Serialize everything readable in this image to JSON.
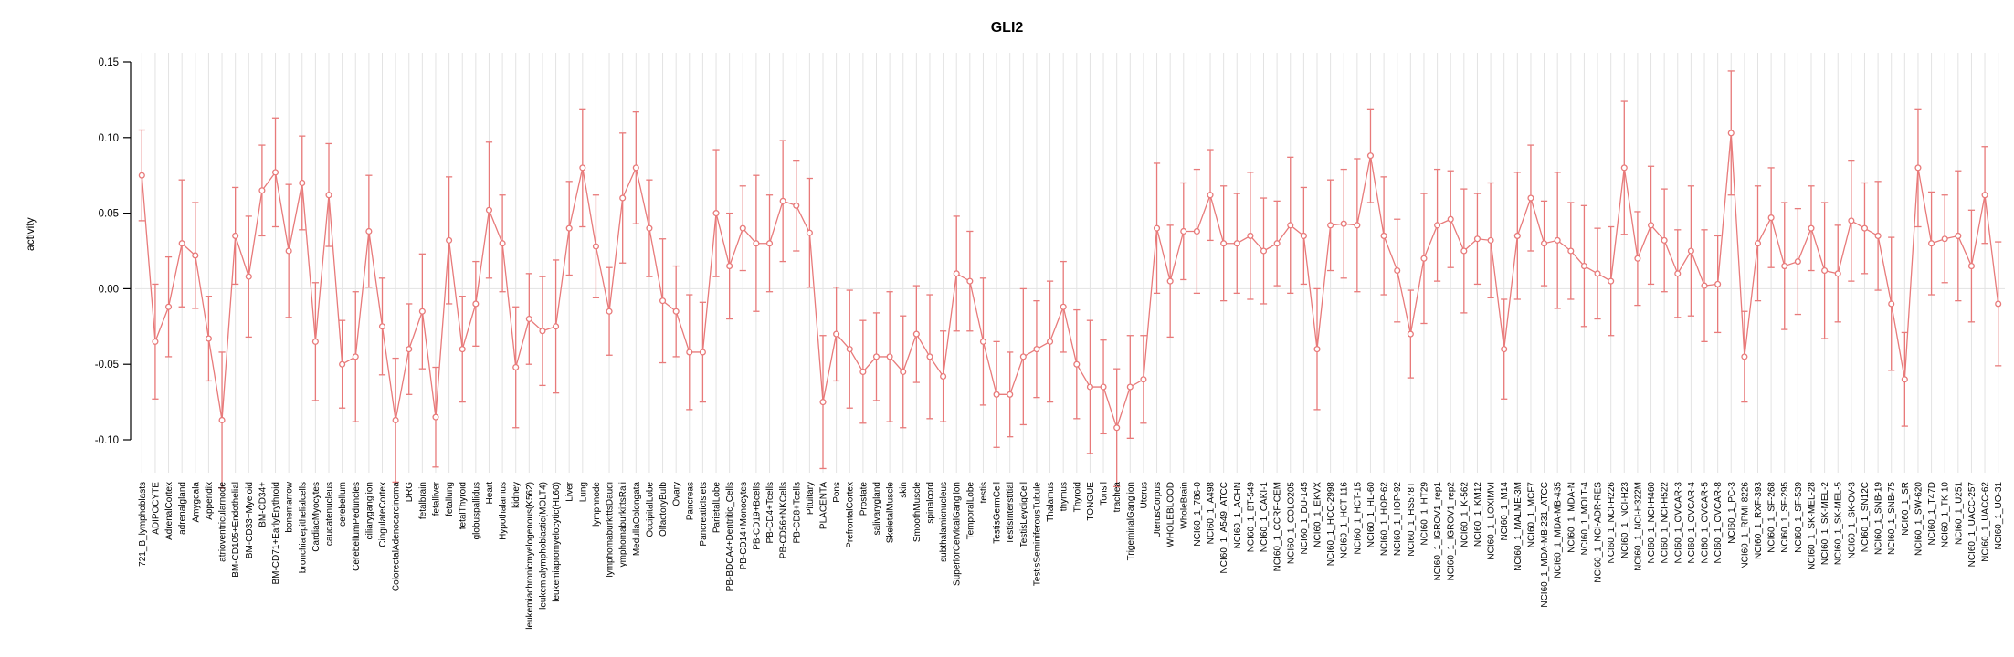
{
  "window": {
    "title": "GLI2"
  },
  "chart_data": {
    "type": "line",
    "title": "GLI2",
    "ylabel": "activity",
    "xlabel": "",
    "ylim": [
      -0.1,
      0.15
    ],
    "ytick_labels": [
      "-0.10",
      "-0.05",
      "0.00",
      "0.05",
      "0.10",
      "0.15"
    ],
    "yticks": [
      -0.1,
      -0.05,
      0.0,
      0.05,
      0.1,
      0.15
    ],
    "grid": "vertical-per-category-plus-zero-line",
    "legend": "none",
    "point_style": "open-circle-with-error-bars",
    "series_color": "#e87a7a",
    "grid_color": "#e3e3e3",
    "axis_color": "#000000",
    "categories": [
      "721_B_lymphoblasts",
      "ADIPOCYTE",
      "AdrenalCortex",
      "adrenalgland",
      "Amygdala",
      "Appendix",
      "atrioventricularnode",
      "BM-CD105+Endothelial",
      "BM-CD33+Myeloid",
      "BM-CD34+",
      "BM-CD71+EarlyErythroid",
      "bonemarrow",
      "bronchialepithelialcells",
      "CardiacMyocytes",
      "caudatenucleus",
      "cerebellum",
      "CerebellumPeduncles",
      "ciliaryganglion",
      "CingulateCortex",
      "ColorectalAdenocarcinoma",
      "DRG",
      "fetalbrain",
      "fetalliver",
      "fetallung",
      "fetalThyroid",
      "globuspallidus",
      "Heart",
      "Hypothalamus",
      "kidney",
      "leukemiachronicmyelogenous(K562)",
      "leukemialymphoblastic(MOLT4)",
      "leukemiapromyelocytic(HL60)",
      "Liver",
      "Lung",
      "lymphnode",
      "lymphomaburkittsDaudi",
      "lymphomaburkittsRaji",
      "MedullaOblongata",
      "OccipitalLobe",
      "OlfactoryBulb",
      "Ovary",
      "Pancreas",
      "PancreaticIslets",
      "ParietalLobe",
      "PB-BDCA4+Dentritic_Cells",
      "PB-CD14+Monocytes",
      "PB-CD19+Bcells",
      "PB-CD4+Tcells",
      "PB-CD56+NKCells",
      "PB-CD8+Tcells",
      "Pituitary",
      "PLACENTA",
      "Pons",
      "PrefrontalCortex",
      "Prostate",
      "salivarygland",
      "SkeletalMuscle",
      "skin",
      "SmoothMuscle",
      "spinalcord",
      "subthalamicnucleus",
      "SuperiorCervicalGanglion",
      "TemporalLobe",
      "testis",
      "TestisGermCell",
      "TestisInterstitial",
      "TestisLeydigCell",
      "TestisSeminiferousTubule",
      "Thalamus",
      "thymus",
      "Thyroid",
      "TONGUE",
      "Tonsil",
      "trachea",
      "TrigeminalGanglion",
      "Uterus",
      "UterusCorpus",
      "WHOLEBLOOD",
      "WholeBrain",
      "NCI60_1_786-0",
      "NCI60_1_A498",
      "NCI60_1_A549_ATCC",
      "NCI60_1_ACHN",
      "NCI60_1_BT-549",
      "NCI60_1_CAKI-1",
      "NCI60_1_CCRF-CEM",
      "NCI60_1_COLO205",
      "NCI60_1_DU-145",
      "NCI60_1_EKVX",
      "NCI60_1_HCC-2998",
      "NCI60_1_HCT-116",
      "NCI60_1_HCT-15",
      "NCI60_1_HL-60",
      "NCI60_1_HOP-62",
      "NCI60_1_HOP-92",
      "NCI60_1_HS578T",
      "NCI60_1_HT29",
      "NCI60_1_IGROV1_rep1",
      "NCI60_1_IGROV1_rep2",
      "NCI60_1_K-562",
      "NCI60_1_KM12",
      "NCI60_1_LOXIMVI",
      "NCI60_1_M14",
      "NCI60_1_MALME-3M",
      "NCI60_1_MCF7",
      "NCI60_1_MDA-MB-231_ATCC",
      "NCI60_1_MDA-MB-435",
      "NCI60_1_MDA-N",
      "NCI60_1_MOLT-4",
      "NCI60_1_NCI-ADR-RES",
      "NCI60_1_NCI-H226",
      "NCI60_1_NCI-H23",
      "NCI60_1_NCI-H322M",
      "NCI60_1_NCI-H460",
      "NCI60_1_NCI-H522",
      "NCI60_1_OVCAR-3",
      "NCI60_1_OVCAR-4",
      "NCI60_1_OVCAR-5",
      "NCI60_1_OVCAR-8",
      "NCI60_1_PC-3",
      "NCI60_1_RPMI-8226",
      "NCI60_1_RXF-393",
      "NCI60_1_SF-268",
      "NCI60_1_SF-295",
      "NCI60_1_SF-539",
      "NCI60_1_SK-MEL-28",
      "NCI60_1_SK-MEL-2",
      "NCI60_1_SK-MEL-5",
      "NCI60_1_SK-OV-3",
      "NCI60_1_SN12C",
      "NCI60_1_SNB-19",
      "NCI60_1_SNB-75",
      "NCI60_1_SR",
      "NCI60_1_SW-620",
      "NCI60_1_T47D",
      "NCI60_1_TK-10",
      "NCI60_1_U251",
      "NCI60_1_UACC-257",
      "NCI60_1_UACC-62",
      "NCI60_1_UO-31"
    ],
    "values": [
      0.075,
      -0.035,
      -0.012,
      0.03,
      0.022,
      -0.033,
      -0.087,
      0.035,
      0.008,
      0.065,
      0.077,
      0.025,
      0.07,
      -0.035,
      0.062,
      -0.05,
      -0.045,
      0.038,
      -0.025,
      -0.087,
      -0.04,
      -0.015,
      -0.085,
      0.032,
      -0.04,
      -0.01,
      0.052,
      0.03,
      -0.052,
      -0.02,
      -0.028,
      -0.025,
      0.04,
      0.08,
      0.028,
      -0.015,
      0.06,
      0.08,
      0.04,
      -0.008,
      -0.015,
      -0.042,
      -0.042,
      0.05,
      0.015,
      0.04,
      0.03,
      0.03,
      0.058,
      0.055,
      0.037,
      -0.075,
      -0.03,
      -0.04,
      -0.055,
      -0.045,
      -0.045,
      -0.055,
      -0.03,
      -0.045,
      -0.058,
      0.01,
      0.005,
      -0.035,
      -0.07,
      -0.07,
      -0.045,
      -0.04,
      -0.035,
      -0.012,
      -0.05,
      -0.065,
      -0.065,
      -0.092,
      -0.065,
      -0.06,
      0.04,
      0.005,
      0.038,
      0.038,
      0.062,
      0.03,
      0.03,
      0.035,
      0.025,
      0.03,
      0.042,
      0.035,
      -0.04,
      0.042,
      0.043,
      0.042,
      0.088,
      0.035,
      0.012,
      -0.03,
      0.02,
      0.042,
      0.046,
      0.025,
      0.033,
      0.032,
      -0.04,
      0.035,
      0.06,
      0.03,
      0.032,
      0.025,
      0.015,
      0.01,
      0.005,
      0.08,
      0.02,
      0.042,
      0.032,
      0.01,
      0.025,
      0.002,
      0.003,
      0.103,
      -0.045,
      0.03,
      0.047,
      0.015,
      0.018,
      0.04,
      0.012,
      0.01,
      0.045,
      0.04,
      0.035,
      -0.01,
      -0.06,
      0.08,
      0.03,
      0.033,
      0.035,
      0.015,
      0.062,
      -0.01
    ],
    "errors": [
      0.03,
      0.038,
      0.033,
      0.042,
      0.035,
      0.028,
      0.045,
      0.032,
      0.04,
      0.03,
      0.036,
      0.044,
      0.031,
      0.039,
      0.034,
      0.029,
      0.043,
      0.037,
      0.032,
      0.041,
      0.03,
      0.038,
      0.033,
      0.042,
      0.035,
      0.028,
      0.045,
      0.032,
      0.04,
      0.03,
      0.036,
      0.044,
      0.031,
      0.039,
      0.034,
      0.029,
      0.043,
      0.037,
      0.032,
      0.041,
      0.03,
      0.038,
      0.033,
      0.042,
      0.035,
      0.028,
      0.045,
      0.032,
      0.04,
      0.03,
      0.036,
      0.044,
      0.031,
      0.039,
      0.034,
      0.029,
      0.043,
      0.037,
      0.032,
      0.041,
      0.03,
      0.038,
      0.033,
      0.042,
      0.035,
      0.028,
      0.045,
      0.032,
      0.04,
      0.03,
      0.036,
      0.044,
      0.031,
      0.039,
      0.034,
      0.029,
      0.043,
      0.037,
      0.032,
      0.041,
      0.03,
      0.038,
      0.033,
      0.042,
      0.035,
      0.028,
      0.045,
      0.032,
      0.04,
      0.03,
      0.036,
      0.044,
      0.031,
      0.039,
      0.034,
      0.029,
      0.043,
      0.037,
      0.032,
      0.041,
      0.03,
      0.038,
      0.033,
      0.042,
      0.035,
      0.028,
      0.045,
      0.032,
      0.04,
      0.03,
      0.036,
      0.044,
      0.031,
      0.039,
      0.034,
      0.029,
      0.043,
      0.037,
      0.032,
      0.041,
      0.03,
      0.038,
      0.033,
      0.042,
      0.035,
      0.028,
      0.045,
      0.032,
      0.04,
      0.03,
      0.036,
      0.044,
      0.031,
      0.039,
      0.034,
      0.029,
      0.043,
      0.037,
      0.032,
      0.041
    ]
  }
}
